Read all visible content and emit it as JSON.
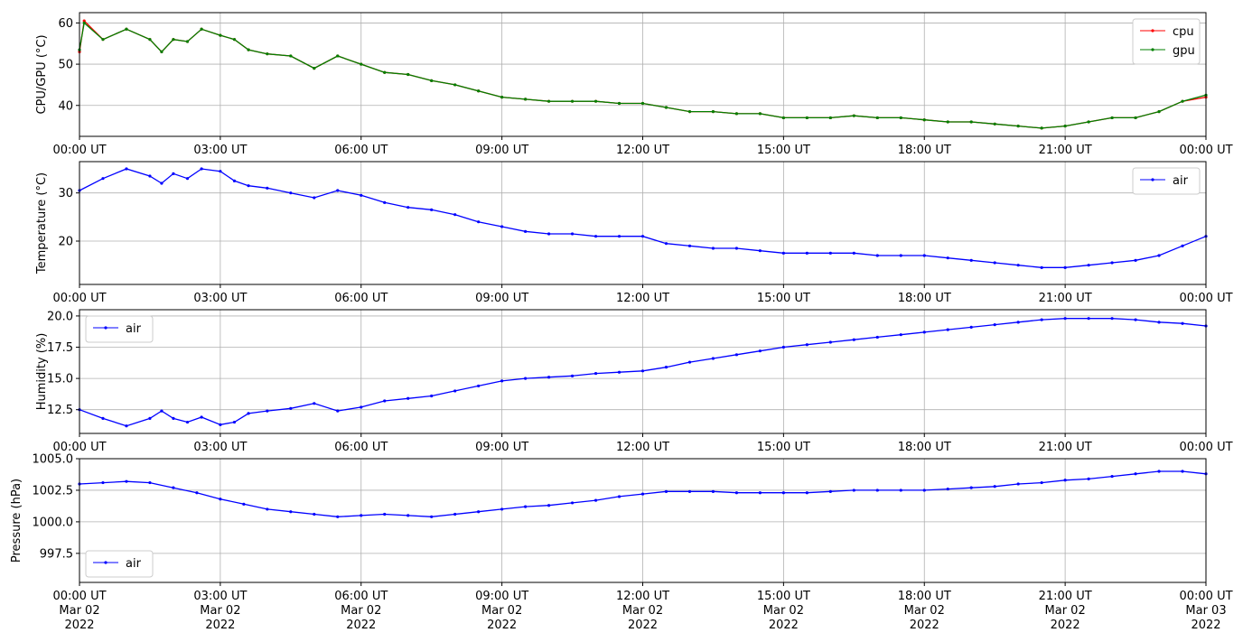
{
  "chart_data": [
    {
      "type": "line",
      "ylabel": "CPU/GPU (°C)",
      "ylim": [
        32.5,
        62.5
      ],
      "yticks": [
        40,
        50,
        60
      ],
      "ytick_labels": [
        "40",
        "50",
        "60"
      ],
      "xlim": [
        0,
        24
      ],
      "xticks": [
        0,
        3,
        6,
        9,
        12,
        15,
        18,
        21,
        24
      ],
      "xtick_labels": [
        "00:00 UT",
        "03:00 UT",
        "06:00 UT",
        "09:00 UT",
        "12:00 UT",
        "15:00 UT",
        "18:00 UT",
        "21:00 UT",
        "00:00 UT"
      ],
      "grid": true,
      "legend": "top-right",
      "series": [
        {
          "name": "cpu",
          "color": "#ff0000",
          "x": [
            0,
            0.1,
            0.5,
            1,
            1.5,
            1.75,
            2,
            2.3,
            2.6,
            3,
            3.3,
            3.6,
            4,
            4.5,
            5,
            5.5,
            6,
            6.5,
            7,
            7.5,
            8,
            8.5,
            9,
            9.5,
            10,
            10.5,
            11,
            11.5,
            12,
            12.5,
            13,
            13.5,
            14,
            14.5,
            15,
            15.5,
            16,
            16.5,
            17,
            17.5,
            18,
            18.5,
            19,
            19.5,
            20,
            20.5,
            21,
            21.5,
            22,
            22.5,
            23,
            23.5,
            24
          ],
          "y": [
            53,
            60.5,
            56,
            58.5,
            56,
            53,
            56,
            55.5,
            58.5,
            57,
            56,
            53.5,
            52.5,
            52,
            49,
            52,
            50,
            48,
            47.5,
            46,
            45,
            43.5,
            42,
            41.5,
            41,
            41,
            41,
            40.5,
            40.5,
            39.5,
            38.5,
            38.5,
            38,
            38,
            37,
            37,
            37,
            37.5,
            37,
            37,
            36.5,
            36,
            36,
            35.5,
            35,
            34.5,
            35,
            36,
            37,
            37,
            38.5,
            41,
            42
          ]
        },
        {
          "name": "gpu",
          "color": "#008000",
          "x": [
            0,
            0.1,
            0.5,
            1,
            1.5,
            1.75,
            2,
            2.3,
            2.6,
            3,
            3.3,
            3.6,
            4,
            4.5,
            5,
            5.5,
            6,
            6.5,
            7,
            7.5,
            8,
            8.5,
            9,
            9.5,
            10,
            10.5,
            11,
            11.5,
            12,
            12.5,
            13,
            13.5,
            14,
            14.5,
            15,
            15.5,
            16,
            16.5,
            17,
            17.5,
            18,
            18.5,
            19,
            19.5,
            20,
            20.5,
            21,
            21.5,
            22,
            22.5,
            23,
            23.5,
            24
          ],
          "y": [
            53.5,
            60,
            56,
            58.5,
            56,
            53,
            56,
            55.5,
            58.5,
            57,
            56,
            53.5,
            52.5,
            52,
            49,
            52,
            50,
            48,
            47.5,
            46,
            45,
            43.5,
            42,
            41.5,
            41,
            41,
            41,
            40.5,
            40.5,
            39.5,
            38.5,
            38.5,
            38,
            38,
            37,
            37,
            37,
            37.5,
            37,
            37,
            36.5,
            36,
            36,
            35.5,
            35,
            34.5,
            35,
            36,
            37,
            37,
            38.5,
            41,
            42.5
          ]
        }
      ]
    },
    {
      "type": "line",
      "ylabel": "Temperature (°C)",
      "ylim": [
        11,
        36.5
      ],
      "yticks": [
        20,
        30
      ],
      "ytick_labels": [
        "20",
        "30"
      ],
      "xlim": [
        0,
        24
      ],
      "xticks": [
        0,
        3,
        6,
        9,
        12,
        15,
        18,
        21,
        24
      ],
      "xtick_labels": [
        "00:00 UT",
        "03:00 UT",
        "06:00 UT",
        "09:00 UT",
        "12:00 UT",
        "15:00 UT",
        "18:00 UT",
        "21:00 UT",
        "00:00 UT"
      ],
      "grid": true,
      "legend": "top-right",
      "series": [
        {
          "name": "air",
          "color": "#0000ff",
          "x": [
            0,
            0.5,
            1,
            1.5,
            1.75,
            2,
            2.3,
            2.6,
            3,
            3.3,
            3.6,
            4,
            4.5,
            5,
            5.5,
            6,
            6.5,
            7,
            7.5,
            8,
            8.5,
            9,
            9.5,
            10,
            10.5,
            11,
            11.5,
            12,
            12.5,
            13,
            13.5,
            14,
            14.5,
            15,
            15.5,
            16,
            16.5,
            17,
            17.5,
            18,
            18.5,
            19,
            19.5,
            20,
            20.5,
            21,
            21.5,
            22,
            22.5,
            23,
            23.5,
            24
          ],
          "y": [
            30.5,
            33,
            35,
            33.5,
            32,
            34,
            33,
            35,
            34.5,
            32.5,
            31.5,
            31,
            30,
            29,
            30.5,
            29.5,
            28,
            27,
            26.5,
            25.5,
            24,
            23,
            22,
            21.5,
            21.5,
            21,
            21,
            21,
            19.5,
            19,
            18.5,
            18.5,
            18,
            17.5,
            17.5,
            17.5,
            17.5,
            17,
            17,
            17,
            16.5,
            16,
            15.5,
            15,
            14.5,
            14.5,
            15,
            15.5,
            16,
            17,
            19,
            21
          ]
        }
      ]
    },
    {
      "type": "line",
      "ylabel": "Humidity (%)",
      "ylim": [
        10.6,
        20.5
      ],
      "yticks": [
        12.5,
        15.0,
        17.5,
        20.0
      ],
      "ytick_labels": [
        "12.5",
        "15.0",
        "17.5",
        "20.0"
      ],
      "xlim": [
        0,
        24
      ],
      "xticks": [
        0,
        3,
        6,
        9,
        12,
        15,
        18,
        21,
        24
      ],
      "xtick_labels": [
        "00:00 UT",
        "03:00 UT",
        "06:00 UT",
        "09:00 UT",
        "12:00 UT",
        "15:00 UT",
        "18:00 UT",
        "21:00 UT",
        "00:00 UT"
      ],
      "grid": true,
      "legend": "top-left",
      "series": [
        {
          "name": "air",
          "color": "#0000ff",
          "x": [
            0,
            0.5,
            1,
            1.5,
            1.75,
            2,
            2.3,
            2.6,
            3,
            3.3,
            3.6,
            4,
            4.5,
            5,
            5.5,
            6,
            6.5,
            7,
            7.5,
            8,
            8.5,
            9,
            9.5,
            10,
            10.5,
            11,
            11.5,
            12,
            12.5,
            13,
            13.5,
            14,
            14.5,
            15,
            15.5,
            16,
            16.5,
            17,
            17.5,
            18,
            18.5,
            19,
            19.5,
            20,
            20.5,
            21,
            21.5,
            22,
            22.5,
            23,
            23.5,
            24
          ],
          "y": [
            12.5,
            11.8,
            11.2,
            11.8,
            12.4,
            11.8,
            11.5,
            11.9,
            11.3,
            11.5,
            12.2,
            12.4,
            12.6,
            13.0,
            12.4,
            12.7,
            13.2,
            13.4,
            13.6,
            14.0,
            14.4,
            14.8,
            15.0,
            15.1,
            15.2,
            15.4,
            15.5,
            15.6,
            15.9,
            16.3,
            16.6,
            16.9,
            17.2,
            17.5,
            17.7,
            17.9,
            18.1,
            18.3,
            18.5,
            18.7,
            18.9,
            19.1,
            19.3,
            19.5,
            19.7,
            19.8,
            19.8,
            19.8,
            19.7,
            19.5,
            19.4,
            19.2
          ]
        }
      ]
    },
    {
      "type": "line",
      "ylabel": "Pressure (hPa)",
      "ylim": [
        995.2,
        1005.0
      ],
      "yticks": [
        997.5,
        1000.0,
        1002.5,
        1005.0
      ],
      "ytick_labels": [
        "997.5",
        "1000.0",
        "1002.5",
        "1005.0"
      ],
      "xlim": [
        0,
        24
      ],
      "xticks": [
        0,
        3,
        6,
        9,
        12,
        15,
        18,
        21,
        24
      ],
      "xtick_labels": [
        "00:00 UT",
        "03:00 UT",
        "06:00 UT",
        "09:00 UT",
        "12:00 UT",
        "15:00 UT",
        "18:00 UT",
        "21:00 UT",
        "00:00 UT"
      ],
      "xtick_dates": [
        "Mar 02\n2022",
        "Mar 02\n2022",
        "Mar 02\n2022",
        "Mar 02\n2022",
        "Mar 02\n2022",
        "Mar 02\n2022",
        "Mar 02\n2022",
        "Mar 02\n2022",
        "Mar 03\n2022"
      ],
      "grid": true,
      "legend": "bottom-left",
      "series": [
        {
          "name": "air",
          "color": "#0000ff",
          "x": [
            0,
            0.5,
            1,
            1.5,
            2,
            2.5,
            3,
            3.5,
            4,
            4.5,
            5,
            5.5,
            6,
            6.5,
            7,
            7.5,
            8,
            8.5,
            9,
            9.5,
            10,
            10.5,
            11,
            11.5,
            12,
            12.5,
            13,
            13.5,
            14,
            14.5,
            15,
            15.5,
            16,
            16.5,
            17,
            17.5,
            18,
            18.5,
            19,
            19.5,
            20,
            20.5,
            21,
            21.5,
            22,
            22.5,
            23,
            23.5,
            24
          ],
          "y": [
            1003.0,
            1003.1,
            1003.2,
            1003.1,
            1002.7,
            1002.3,
            1001.8,
            1001.4,
            1001.0,
            1000.8,
            1000.6,
            1000.4,
            1000.5,
            1000.6,
            1000.5,
            1000.4,
            1000.6,
            1000.8,
            1001.0,
            1001.2,
            1001.3,
            1001.5,
            1001.7,
            1002.0,
            1002.2,
            1002.4,
            1002.4,
            1002.4,
            1002.3,
            1002.3,
            1002.3,
            1002.3,
            1002.4,
            1002.5,
            1002.5,
            1002.5,
            1002.5,
            1002.6,
            1002.7,
            1002.8,
            1003.0,
            1003.1,
            1003.3,
            1003.4,
            1003.6,
            1003.8,
            1004.0,
            1004.0,
            1003.8
          ]
        }
      ]
    }
  ]
}
